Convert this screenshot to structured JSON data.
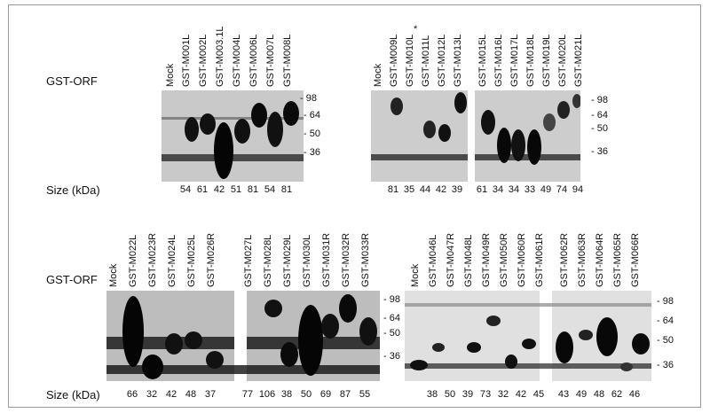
{
  "row_label": "GST-ORF",
  "size_label": "Size (kDa)",
  "markers": [
    "98",
    "64",
    "50",
    "36"
  ],
  "asterisk": "*",
  "panels": {
    "a": {
      "lanes": [
        "Mock",
        "GST-M001L",
        "GST-M002L",
        "GST-M003.1L",
        "GST-M004L",
        "GST-M006L",
        "GST-M007L",
        "GST-M008L"
      ],
      "sizes": [
        "54",
        "61",
        "42",
        "51",
        "81",
        "54",
        "81"
      ]
    },
    "b": {
      "lanes": [
        "Mock",
        "GST-M009L",
        "GST-M010L",
        "GST-M011L",
        "GST-M012L",
        "GST-M013L",
        "GST-M015L",
        "GST-M016L",
        "GST-M017L",
        "GST-M018L",
        "GST-M019L",
        "GST-M020L",
        "GST-M021L"
      ],
      "sizes": [
        "81",
        "35",
        "44",
        "42",
        "39",
        "61",
        "34",
        "34",
        "33",
        "49",
        "74",
        "94"
      ]
    },
    "c": {
      "lanes": [
        "Mock",
        "GST-M022L",
        "GST-M023R",
        "GST-M024L",
        "GST-M025L",
        "GST-M026R",
        "GST-M027L",
        "GST-M028L",
        "GST-M029L",
        "GST-M030L",
        "GST-M031R",
        "GST-M032R",
        "GST-M033R"
      ],
      "sizes": [
        "66",
        "32",
        "42",
        "48",
        "37",
        "77",
        "106",
        "38",
        "50",
        "69",
        "87",
        "55"
      ]
    },
    "d": {
      "lanes": [
        "Mock",
        "GST-M046L",
        "GST-M047R",
        "GST-M048L",
        "GST-M049R",
        "GST-M050R",
        "GST-M060R",
        "GST-M061R",
        "GST-M062R",
        "GST-M063R",
        "GST-M064R",
        "GST-M065R",
        "GST-M066R"
      ],
      "sizes": [
        "38",
        "50",
        "39",
        "73",
        "32",
        "42",
        "45",
        "43",
        "49",
        "48",
        "62",
        "46"
      ]
    }
  }
}
